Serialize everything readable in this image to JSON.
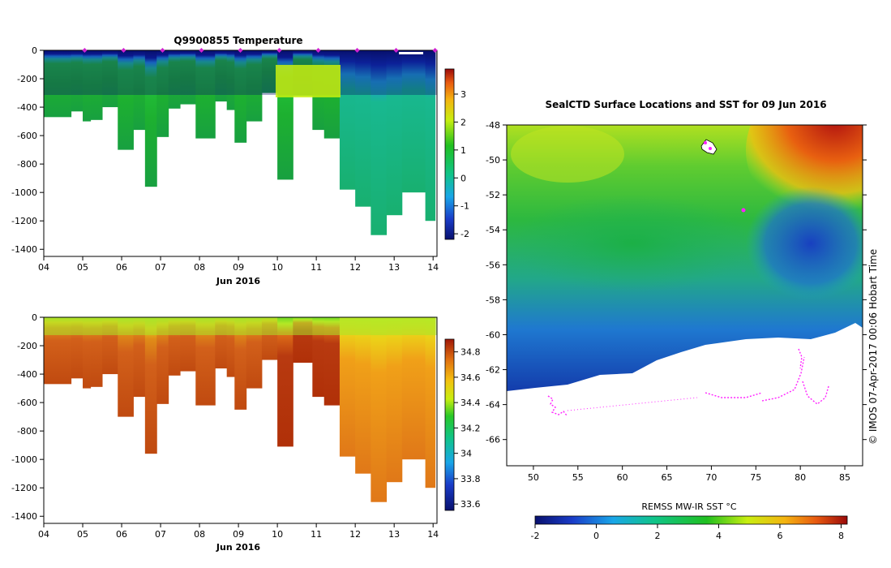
{
  "figure": {
    "copyright": "© IMOS 07-Apr-2017 00:06 Hobart Time"
  },
  "chart_data": [
    {
      "type": "heatmap",
      "name": "temperature-section",
      "title": "Q9900855  Temperature",
      "xlabel": "Jun 2016",
      "x_ticks": [
        "04",
        "05",
        "06",
        "07",
        "08",
        "09",
        "10",
        "11",
        "12",
        "13",
        "14"
      ],
      "x_range": [
        4,
        14.1
      ],
      "y_ticks": [
        0,
        -200,
        -400,
        -600,
        -800,
        -1000,
        -1200,
        -1400
      ],
      "y_range": [
        -1450,
        0
      ],
      "colorbar": {
        "min": -2.2,
        "max": 3.9,
        "ticks": [
          3,
          2,
          1,
          0,
          -1,
          -2
        ]
      },
      "profile_markers_day": [
        5.0,
        6.0,
        7.0,
        8.0,
        9.0,
        10.0,
        11.0,
        12.0,
        13.0,
        14.0
      ],
      "profiles": [
        {
          "day": 4.0,
          "depth": 470
        },
        {
          "day": 4.7,
          "depth": 430
        },
        {
          "day": 5.0,
          "depth": 500
        },
        {
          "day": 5.2,
          "depth": 490
        },
        {
          "day": 5.5,
          "depth": 400
        },
        {
          "day": 5.9,
          "depth": 700
        },
        {
          "day": 6.3,
          "depth": 560
        },
        {
          "day": 6.6,
          "depth": 960
        },
        {
          "day": 6.9,
          "depth": 610
        },
        {
          "day": 7.2,
          "depth": 410
        },
        {
          "day": 7.5,
          "depth": 380
        },
        {
          "day": 7.9,
          "depth": 620
        },
        {
          "day": 8.4,
          "depth": 360
        },
        {
          "day": 8.7,
          "depth": 420
        },
        {
          "day": 8.9,
          "depth": 650
        },
        {
          "day": 9.2,
          "depth": 500
        },
        {
          "day": 9.6,
          "depth": 300
        },
        {
          "day": 10.0,
          "depth": 910
        },
        {
          "day": 10.4,
          "depth": 320
        },
        {
          "day": 10.9,
          "depth": 560
        },
        {
          "day": 11.2,
          "depth": 620
        },
        {
          "day": 11.6,
          "depth": 980
        },
        {
          "day": 12.0,
          "depth": 1100
        },
        {
          "day": 12.4,
          "depth": 1300
        },
        {
          "day": 12.8,
          "depth": 1160
        },
        {
          "day": 13.2,
          "depth": 1000
        },
        {
          "day": 13.8,
          "depth": 1200
        }
      ]
    },
    {
      "type": "heatmap",
      "name": "salinity-section",
      "title": "",
      "xlabel": "Jun 2016",
      "x_ticks": [
        "04",
        "05",
        "06",
        "07",
        "08",
        "09",
        "10",
        "11",
        "12",
        "13",
        "14"
      ],
      "x_range": [
        4,
        14.1
      ],
      "y_ticks": [
        0,
        -200,
        -400,
        -600,
        -800,
        -1000,
        -1200,
        -1400
      ],
      "y_range": [
        -1450,
        0
      ],
      "colorbar": {
        "min": 33.55,
        "max": 34.9,
        "ticks": [
          "34.8",
          "34.6",
          "34.4",
          "34.2",
          "34",
          "33.8",
          "33.6"
        ]
      }
    },
    {
      "type": "heatmap",
      "name": "sst-map",
      "title": "SealCTD Surface Locations and SST for 09 Jun 2016",
      "x_ticks": [
        50,
        55,
        60,
        65,
        70,
        75,
        80,
        85
      ],
      "x_range": [
        47,
        87
      ],
      "y_ticks": [
        -48,
        -50,
        -52,
        -54,
        -56,
        -58,
        -60,
        -62,
        -64,
        -66
      ],
      "y_range": [
        -67.5,
        -48
      ],
      "colorbar": {
        "label": "REMSS MW-IR SST °C",
        "min": -2.0,
        "max": 8.2,
        "ticks": [
          -2,
          0,
          2,
          4,
          6,
          8
        ]
      }
    }
  ]
}
